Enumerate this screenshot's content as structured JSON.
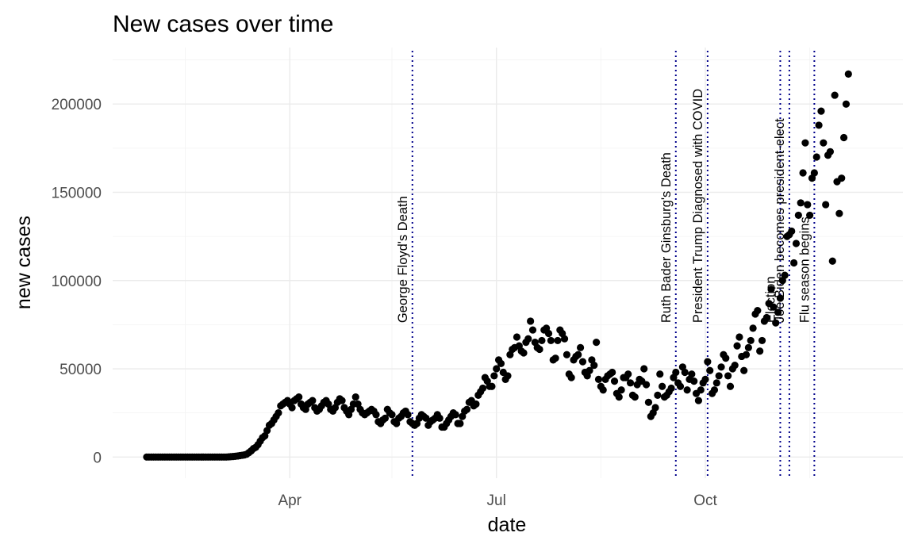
{
  "chart_data": {
    "type": "scatter",
    "title": "New cases over time",
    "xlabel": "date",
    "ylabel": "new cases",
    "x_range": [
      "2020-01-14",
      "2020-12-27"
    ],
    "ylim": [
      -12000,
      232000
    ],
    "y_ticks": [
      0,
      50000,
      100000,
      150000,
      200000
    ],
    "x_ticks": [
      {
        "date": "2020-04-01",
        "label": "Apr"
      },
      {
        "date": "2020-07-01",
        "label": "Jul"
      },
      {
        "date": "2020-10-01",
        "label": "Oct"
      }
    ],
    "x_minor_ticks": [
      "2020-02-15",
      "2020-05-16",
      "2020-08-16",
      "2020-11-16"
    ],
    "grid": true,
    "point_color": "#000000",
    "line_color": "#00008b",
    "events": [
      {
        "date": "2020-05-25",
        "label": "George Floyd's Death"
      },
      {
        "date": "2020-09-18",
        "label": "Ruth Bader Ginsburg's Death"
      },
      {
        "date": "2020-10-02",
        "label": "President Trump Diagnosed with COVID"
      },
      {
        "date": "2020-11-03",
        "label": "Election"
      },
      {
        "date": "2020-11-07",
        "label": "Joe Biden becomes president-elect"
      },
      {
        "date": "2020-11-18",
        "label": "Flu season begins"
      }
    ],
    "points": [
      [
        "2020-01-29",
        0
      ],
      [
        "2020-01-30",
        0
      ],
      [
        "2020-01-31",
        0
      ],
      [
        "2020-02-01",
        0
      ],
      [
        "2020-02-02",
        0
      ],
      [
        "2020-02-03",
        0
      ],
      [
        "2020-02-04",
        0
      ],
      [
        "2020-02-05",
        0
      ],
      [
        "2020-02-06",
        0
      ],
      [
        "2020-02-07",
        0
      ],
      [
        "2020-02-08",
        0
      ],
      [
        "2020-02-09",
        0
      ],
      [
        "2020-02-10",
        0
      ],
      [
        "2020-02-11",
        0
      ],
      [
        "2020-02-12",
        0
      ],
      [
        "2020-02-13",
        0
      ],
      [
        "2020-02-14",
        0
      ],
      [
        "2020-02-15",
        0
      ],
      [
        "2020-02-16",
        0
      ],
      [
        "2020-02-17",
        0
      ],
      [
        "2020-02-18",
        0
      ],
      [
        "2020-02-19",
        0
      ],
      [
        "2020-02-20",
        0
      ],
      [
        "2020-02-21",
        0
      ],
      [
        "2020-02-22",
        0
      ],
      [
        "2020-02-23",
        0
      ],
      [
        "2020-02-24",
        0
      ],
      [
        "2020-02-25",
        0
      ],
      [
        "2020-02-26",
        0
      ],
      [
        "2020-02-27",
        0
      ],
      [
        "2020-02-28",
        0
      ],
      [
        "2020-02-29",
        0
      ],
      [
        "2020-03-01",
        0
      ],
      [
        "2020-03-02",
        0
      ],
      [
        "2020-03-03",
        0
      ],
      [
        "2020-03-04",
        0
      ],
      [
        "2020-03-05",
        100
      ],
      [
        "2020-03-06",
        200
      ],
      [
        "2020-03-07",
        300
      ],
      [
        "2020-03-08",
        400
      ],
      [
        "2020-03-09",
        600
      ],
      [
        "2020-03-10",
        800
      ],
      [
        "2020-03-11",
        1000
      ],
      [
        "2020-03-12",
        1200
      ],
      [
        "2020-03-13",
        1600
      ],
      [
        "2020-03-14",
        2500
      ],
      [
        "2020-03-15",
        3500
      ],
      [
        "2020-03-16",
        4800
      ],
      [
        "2020-03-17",
        5500
      ],
      [
        "2020-03-18",
        7000
      ],
      [
        "2020-03-19",
        9000
      ],
      [
        "2020-03-20",
        11000
      ],
      [
        "2020-03-21",
        12000
      ],
      [
        "2020-03-22",
        15000
      ],
      [
        "2020-03-23",
        18000
      ],
      [
        "2020-03-24",
        19000
      ],
      [
        "2020-03-25",
        21000
      ],
      [
        "2020-03-26",
        23000
      ],
      [
        "2020-03-27",
        25000
      ],
      [
        "2020-03-28",
        29000
      ],
      [
        "2020-03-29",
        30000
      ],
      [
        "2020-03-30",
        31000
      ],
      [
        "2020-03-31",
        32000
      ],
      [
        "2020-04-01",
        30000
      ],
      [
        "2020-04-02",
        28000
      ],
      [
        "2020-04-03",
        32000
      ],
      [
        "2020-04-04",
        33000
      ],
      [
        "2020-04-05",
        34000
      ],
      [
        "2020-04-06",
        30000
      ],
      [
        "2020-04-07",
        28000
      ],
      [
        "2020-04-08",
        27000
      ],
      [
        "2020-04-09",
        30000
      ],
      [
        "2020-04-10",
        31000
      ],
      [
        "2020-04-11",
        32000
      ],
      [
        "2020-04-12",
        28000
      ],
      [
        "2020-04-13",
        26000
      ],
      [
        "2020-04-14",
        27000
      ],
      [
        "2020-04-15",
        29000
      ],
      [
        "2020-04-16",
        31000
      ],
      [
        "2020-04-17",
        32000
      ],
      [
        "2020-04-18",
        30000
      ],
      [
        "2020-04-19",
        27000
      ],
      [
        "2020-04-20",
        26000
      ],
      [
        "2020-04-21",
        28000
      ],
      [
        "2020-04-22",
        31000
      ],
      [
        "2020-04-23",
        33000
      ],
      [
        "2020-04-24",
        32000
      ],
      [
        "2020-04-25",
        28000
      ],
      [
        "2020-04-26",
        26000
      ],
      [
        "2020-04-27",
        24000
      ],
      [
        "2020-04-28",
        27000
      ],
      [
        "2020-04-29",
        30000
      ],
      [
        "2020-04-30",
        34000
      ],
      [
        "2020-05-01",
        30000
      ],
      [
        "2020-05-02",
        27000
      ],
      [
        "2020-05-03",
        25000
      ],
      [
        "2020-05-04",
        24000
      ],
      [
        "2020-05-05",
        25000
      ],
      [
        "2020-05-06",
        26000
      ],
      [
        "2020-05-07",
        27000
      ],
      [
        "2020-05-08",
        26000
      ],
      [
        "2020-05-09",
        24000
      ],
      [
        "2020-05-10",
        20000
      ],
      [
        "2020-05-11",
        19000
      ],
      [
        "2020-05-12",
        21000
      ],
      [
        "2020-05-13",
        22000
      ],
      [
        "2020-05-14",
        27000
      ],
      [
        "2020-05-15",
        25000
      ],
      [
        "2020-05-16",
        24000
      ],
      [
        "2020-05-17",
        20000
      ],
      [
        "2020-05-18",
        19000
      ],
      [
        "2020-05-19",
        22000
      ],
      [
        "2020-05-20",
        23000
      ],
      [
        "2020-05-21",
        25000
      ],
      [
        "2020-05-22",
        26000
      ],
      [
        "2020-05-23",
        24000
      ],
      [
        "2020-05-24",
        20000
      ],
      [
        "2020-05-25",
        19000
      ],
      [
        "2020-05-26",
        18000
      ],
      [
        "2020-05-27",
        19000
      ],
      [
        "2020-05-28",
        22000
      ],
      [
        "2020-05-29",
        24000
      ],
      [
        "2020-05-30",
        23000
      ],
      [
        "2020-05-31",
        22000
      ],
      [
        "2020-06-01",
        18000
      ],
      [
        "2020-06-02",
        20000
      ],
      [
        "2020-06-03",
        21000
      ],
      [
        "2020-06-04",
        22000
      ],
      [
        "2020-06-05",
        24000
      ],
      [
        "2020-06-06",
        22000
      ],
      [
        "2020-06-07",
        17000
      ],
      [
        "2020-06-08",
        17000
      ],
      [
        "2020-06-09",
        19000
      ],
      [
        "2020-06-10",
        21000
      ],
      [
        "2020-06-11",
        23000
      ],
      [
        "2020-06-12",
        25000
      ],
      [
        "2020-06-13",
        24000
      ],
      [
        "2020-06-14",
        19000
      ],
      [
        "2020-06-15",
        19000
      ],
      [
        "2020-06-16",
        23000
      ],
      [
        "2020-06-17",
        26000
      ],
      [
        "2020-06-18",
        27000
      ],
      [
        "2020-06-19",
        31000
      ],
      [
        "2020-06-20",
        32000
      ],
      [
        "2020-06-21",
        29000
      ],
      [
        "2020-06-22",
        30000
      ],
      [
        "2020-06-23",
        35000
      ],
      [
        "2020-06-24",
        37000
      ],
      [
        "2020-06-25",
        39000
      ],
      [
        "2020-06-26",
        45000
      ],
      [
        "2020-06-27",
        43000
      ],
      [
        "2020-06-28",
        40000
      ],
      [
        "2020-06-29",
        40000
      ],
      [
        "2020-06-30",
        46000
      ],
      [
        "2020-07-01",
        50000
      ],
      [
        "2020-07-02",
        55000
      ],
      [
        "2020-07-03",
        53000
      ],
      [
        "2020-07-04",
        48000
      ],
      [
        "2020-07-05",
        44000
      ],
      [
        "2020-07-06",
        46000
      ],
      [
        "2020-07-07",
        58000
      ],
      [
        "2020-07-08",
        61000
      ],
      [
        "2020-07-09",
        62000
      ],
      [
        "2020-07-10",
        68000
      ],
      [
        "2020-07-11",
        63000
      ],
      [
        "2020-07-12",
        60000
      ],
      [
        "2020-07-13",
        59000
      ],
      [
        "2020-07-14",
        65000
      ],
      [
        "2020-07-15",
        67000
      ],
      [
        "2020-07-16",
        77000
      ],
      [
        "2020-07-17",
        72000
      ],
      [
        "2020-07-18",
        65000
      ],
      [
        "2020-07-19",
        62000
      ],
      [
        "2020-07-20",
        61000
      ],
      [
        "2020-07-21",
        66000
      ],
      [
        "2020-07-22",
        72000
      ],
      [
        "2020-07-23",
        73000
      ],
      [
        "2020-07-24",
        70000
      ],
      [
        "2020-07-25",
        66000
      ],
      [
        "2020-07-26",
        55000
      ],
      [
        "2020-07-27",
        56000
      ],
      [
        "2020-07-28",
        66000
      ],
      [
        "2020-07-29",
        72000
      ],
      [
        "2020-07-30",
        70000
      ],
      [
        "2020-07-31",
        67000
      ],
      [
        "2020-08-01",
        58000
      ],
      [
        "2020-08-02",
        47000
      ],
      [
        "2020-08-03",
        45000
      ],
      [
        "2020-08-04",
        55000
      ],
      [
        "2020-08-05",
        57000
      ],
      [
        "2020-08-06",
        58000
      ],
      [
        "2020-08-07",
        62000
      ],
      [
        "2020-08-08",
        54000
      ],
      [
        "2020-08-09",
        48000
      ],
      [
        "2020-08-10",
        46000
      ],
      [
        "2020-08-11",
        49000
      ],
      [
        "2020-08-12",
        55000
      ],
      [
        "2020-08-13",
        52000
      ],
      [
        "2020-08-14",
        65000
      ],
      [
        "2020-08-15",
        44000
      ],
      [
        "2020-08-16",
        40000
      ],
      [
        "2020-08-17",
        38000
      ],
      [
        "2020-08-18",
        44000
      ],
      [
        "2020-08-19",
        46000
      ],
      [
        "2020-08-20",
        47000
      ],
      [
        "2020-08-21",
        48000
      ],
      [
        "2020-08-22",
        43000
      ],
      [
        "2020-08-23",
        36000
      ],
      [
        "2020-08-24",
        34000
      ],
      [
        "2020-08-25",
        38000
      ],
      [
        "2020-08-26",
        45000
      ],
      [
        "2020-08-27",
        45000
      ],
      [
        "2020-08-28",
        47000
      ],
      [
        "2020-08-29",
        42000
      ],
      [
        "2020-08-30",
        35000
      ],
      [
        "2020-08-31",
        34000
      ],
      [
        "2020-09-01",
        41000
      ],
      [
        "2020-09-02",
        44000
      ],
      [
        "2020-09-03",
        43000
      ],
      [
        "2020-09-04",
        50000
      ],
      [
        "2020-09-05",
        41000
      ],
      [
        "2020-09-06",
        31000
      ],
      [
        "2020-09-07",
        23000
      ],
      [
        "2020-09-08",
        25000
      ],
      [
        "2020-09-09",
        28000
      ],
      [
        "2020-09-10",
        35000
      ],
      [
        "2020-09-11",
        47000
      ],
      [
        "2020-09-12",
        40000
      ],
      [
        "2020-09-13",
        34000
      ],
      [
        "2020-09-14",
        35000
      ],
      [
        "2020-09-15",
        37000
      ],
      [
        "2020-09-16",
        39000
      ],
      [
        "2020-09-17",
        45000
      ],
      [
        "2020-09-18",
        48000
      ],
      [
        "2020-09-19",
        42000
      ],
      [
        "2020-09-20",
        40000
      ],
      [
        "2020-09-21",
        51000
      ],
      [
        "2020-09-22",
        48000
      ],
      [
        "2020-09-23",
        38000
      ],
      [
        "2020-09-24",
        44000
      ],
      [
        "2020-09-25",
        47000
      ],
      [
        "2020-09-26",
        43000
      ],
      [
        "2020-09-27",
        36000
      ],
      [
        "2020-09-28",
        32000
      ],
      [
        "2020-09-29",
        38000
      ],
      [
        "2020-09-30",
        42000
      ],
      [
        "2020-10-01",
        44000
      ],
      [
        "2020-10-02",
        54000
      ],
      [
        "2020-10-03",
        49000
      ],
      [
        "2020-10-04",
        36000
      ],
      [
        "2020-10-05",
        38000
      ],
      [
        "2020-10-06",
        42000
      ],
      [
        "2020-10-07",
        46000
      ],
      [
        "2020-10-08",
        51000
      ],
      [
        "2020-10-09",
        58000
      ],
      [
        "2020-10-10",
        56000
      ],
      [
        "2020-10-11",
        46000
      ],
      [
        "2020-10-12",
        40000
      ],
      [
        "2020-10-13",
        50000
      ],
      [
        "2020-10-14",
        52000
      ],
      [
        "2020-10-15",
        63000
      ],
      [
        "2020-10-16",
        68000
      ],
      [
        "2020-10-17",
        57000
      ],
      [
        "2020-10-18",
        49000
      ],
      [
        "2020-10-19",
        58000
      ],
      [
        "2020-10-20",
        62000
      ],
      [
        "2020-10-21",
        66000
      ],
      [
        "2020-10-22",
        73000
      ],
      [
        "2020-10-23",
        81000
      ],
      [
        "2020-10-24",
        83000
      ],
      [
        "2020-10-25",
        60000
      ],
      [
        "2020-10-26",
        66000
      ],
      [
        "2020-10-27",
        77000
      ],
      [
        "2020-10-28",
        79000
      ],
      [
        "2020-10-29",
        87000
      ],
      [
        "2020-10-30",
        95000
      ],
      [
        "2020-10-31",
        85000
      ],
      [
        "2020-11-01",
        76000
      ],
      [
        "2020-11-02",
        82000
      ],
      [
        "2020-11-03",
        90000
      ],
      [
        "2020-11-04",
        100000
      ],
      [
        "2020-11-05",
        103000
      ],
      [
        "2020-11-06",
        125000
      ],
      [
        "2020-11-07",
        126000
      ],
      [
        "2020-11-08",
        128000
      ],
      [
        "2020-11-09",
        110000
      ],
      [
        "2020-11-10",
        121000
      ],
      [
        "2020-11-11",
        137000
      ],
      [
        "2020-11-12",
        144000
      ],
      [
        "2020-11-13",
        161000
      ],
      [
        "2020-11-14",
        178000
      ],
      [
        "2020-11-15",
        143000
      ],
      [
        "2020-11-16",
        137000
      ],
      [
        "2020-11-17",
        158000
      ],
      [
        "2020-11-18",
        161000
      ],
      [
        "2020-11-19",
        170000
      ],
      [
        "2020-11-20",
        188000
      ],
      [
        "2020-11-21",
        196000
      ],
      [
        "2020-11-22",
        178000
      ],
      [
        "2020-11-23",
        143000
      ],
      [
        "2020-11-24",
        171000
      ],
      [
        "2020-11-25",
        173000
      ],
      [
        "2020-11-26",
        111000
      ],
      [
        "2020-11-27",
        205000
      ],
      [
        "2020-11-28",
        156000
      ],
      [
        "2020-11-29",
        138000
      ],
      [
        "2020-11-30",
        158000
      ],
      [
        "2020-12-01",
        181000
      ],
      [
        "2020-12-02",
        200000
      ],
      [
        "2020-12-03",
        217000
      ]
    ]
  }
}
